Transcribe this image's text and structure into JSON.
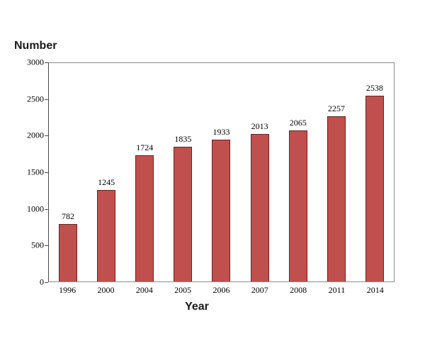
{
  "chart_data": {
    "type": "bar",
    "title": "",
    "ylabel": "Number",
    "xlabel": "Year",
    "categories": [
      "1996",
      "2000",
      "2004",
      "2005",
      "2006",
      "2007",
      "2008",
      "2011",
      "2014"
    ],
    "values": [
      782,
      1245,
      1724,
      1835,
      1933,
      2013,
      2065,
      2257,
      2538
    ],
    "ylim": [
      0,
      3000
    ],
    "yticks": [
      0,
      500,
      1000,
      1500,
      2000,
      2500,
      3000
    ],
    "value_labels": true,
    "grid": false,
    "legend_position": "none",
    "colors": {
      "bar_fill": "#c0504d",
      "bar_border": "#622423",
      "axis_line": "#4a4a4a",
      "plot_border": "#8c8c8c",
      "text": "#000000"
    }
  }
}
